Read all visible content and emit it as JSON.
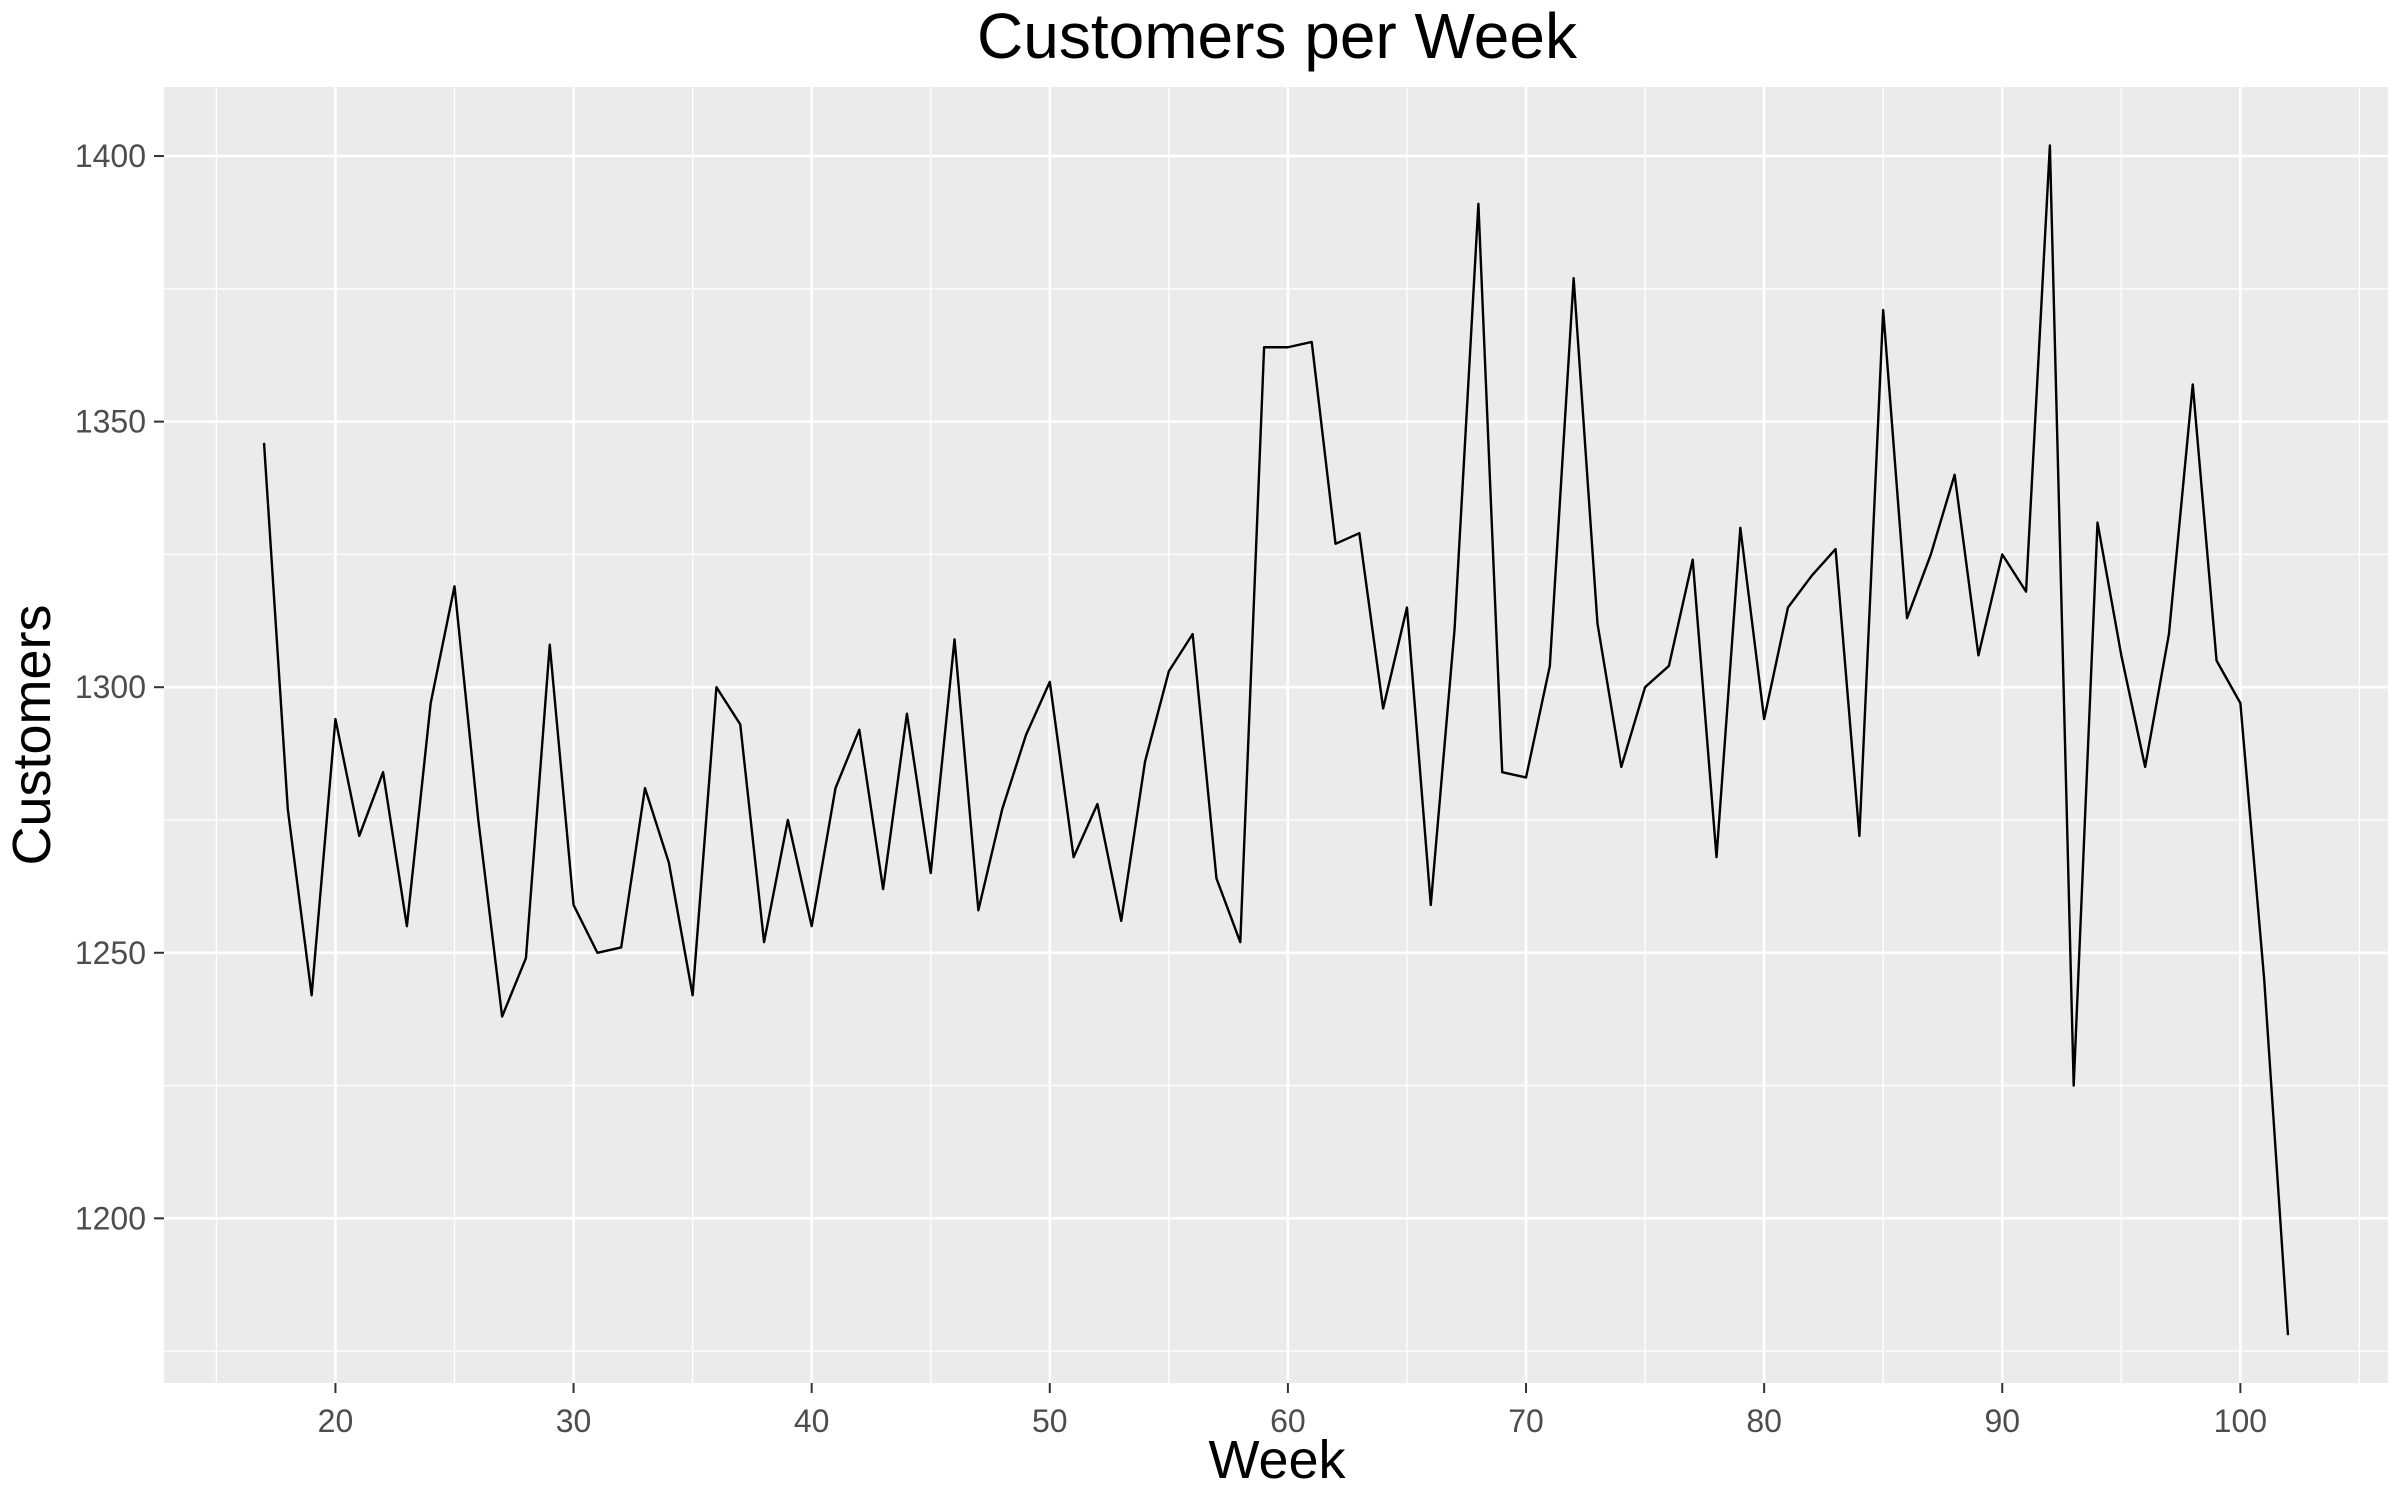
{
  "chart_data": {
    "type": "line",
    "title": "Customers per Week",
    "xlabel": "Week",
    "ylabel": "Customers",
    "xlim": [
      12.8,
      106.2
    ],
    "ylim": [
      1169,
      1413
    ],
    "x_ticks": [
      20,
      30,
      40,
      50,
      60,
      70,
      80,
      90,
      100
    ],
    "y_ticks": [
      1200,
      1250,
      1300,
      1350,
      1400
    ],
    "x_tick_labels": [
      "20",
      "30",
      "40",
      "50",
      "60",
      "70",
      "80",
      "90",
      "100"
    ],
    "y_tick_labels": [
      "1200",
      "1250",
      "1300",
      "1350",
      "1400"
    ],
    "grid": true,
    "legend": "none",
    "colors": {
      "panel": "#ebebeb",
      "line": "#000000",
      "grid": "#ffffff",
      "tick_text": "#4d4d4d"
    },
    "series": [
      {
        "x": [
          17,
          18,
          19,
          20,
          21,
          22,
          23,
          24,
          25,
          26,
          27,
          28,
          29,
          30,
          31,
          32,
          33,
          34,
          35,
          36,
          37,
          38,
          39,
          40,
          41,
          42,
          43,
          44,
          45,
          46,
          47,
          48,
          49,
          50,
          51,
          52,
          53,
          54,
          55,
          56,
          57,
          58,
          59,
          60,
          61,
          62,
          63,
          64,
          65,
          66,
          67,
          68,
          69,
          70,
          71,
          72,
          73,
          74,
          75,
          76,
          77,
          78,
          79,
          80,
          81,
          82,
          83,
          84,
          85,
          86,
          87,
          88,
          89,
          90,
          91,
          92,
          93,
          94,
          95,
          96,
          97,
          98,
          99,
          100,
          101,
          102
        ],
        "values": [
          1346,
          1277,
          1242,
          1294,
          1272,
          1284,
          1255,
          1297,
          1319,
          1275,
          1238,
          1249,
          1308,
          1259,
          1250,
          1251,
          1281,
          1267,
          1242,
          1300,
          1293,
          1252,
          1275,
          1255,
          1281,
          1292,
          1262,
          1295,
          1265,
          1309,
          1258,
          1277,
          1291,
          1301,
          1268,
          1278,
          1256,
          1286,
          1303,
          1310,
          1264,
          1252,
          1364,
          1364,
          1365,
          1327,
          1329,
          1296,
          1315,
          1259,
          1311,
          1391,
          1284,
          1283,
          1304,
          1377,
          1312,
          1285,
          1300,
          1304,
          1324,
          1268,
          1330,
          1294,
          1315,
          1321,
          1326,
          1272,
          1371,
          1313,
          1325,
          1340,
          1306,
          1325,
          1318,
          1402,
          1225,
          1331,
          1306,
          1285,
          1310,
          1357,
          1305,
          1297,
          1245,
          1178
        ]
      }
    ]
  }
}
